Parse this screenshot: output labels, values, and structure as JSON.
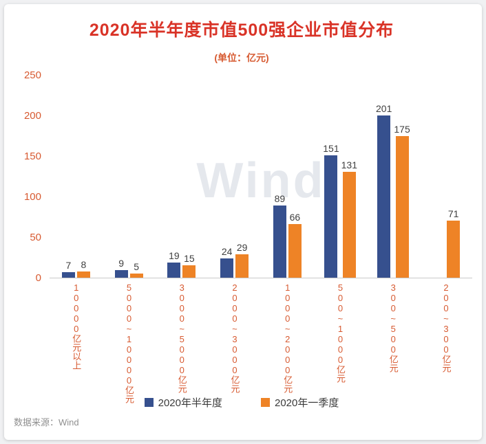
{
  "chart_data": {
    "type": "bar",
    "title": "2020年半年度市值500强企业市值分布",
    "unit_label": "(单位：亿元)",
    "categories": [
      "10000亿元以上",
      "5000~10000亿元",
      "3000~5000亿元",
      "2000~3000亿元",
      "1000~2000亿元",
      "500~1000亿元",
      "300~500亿元",
      "200~300亿元"
    ],
    "series": [
      {
        "name": "2020年半年度",
        "color": "#36508e",
        "values": [
          7,
          9,
          19,
          24,
          89,
          151,
          201,
          null
        ]
      },
      {
        "name": "2020年一季度",
        "color": "#ee8326",
        "values": [
          8,
          5,
          15,
          29,
          66,
          131,
          175,
          71
        ]
      }
    ],
    "ylim": [
      0,
      250
    ],
    "yticks": [
      0,
      50,
      100,
      150,
      200,
      250
    ],
    "legend_position": "bottom",
    "grid": false
  },
  "watermark": {
    "text": "Wind"
  },
  "footer": {
    "source": "数据来源：Wind"
  },
  "colors": {
    "title": "#d93327",
    "axis_labels": "#d75a31",
    "value_labels": "#3f3f3f",
    "navy": "#36508e",
    "orange": "#ee8326"
  }
}
